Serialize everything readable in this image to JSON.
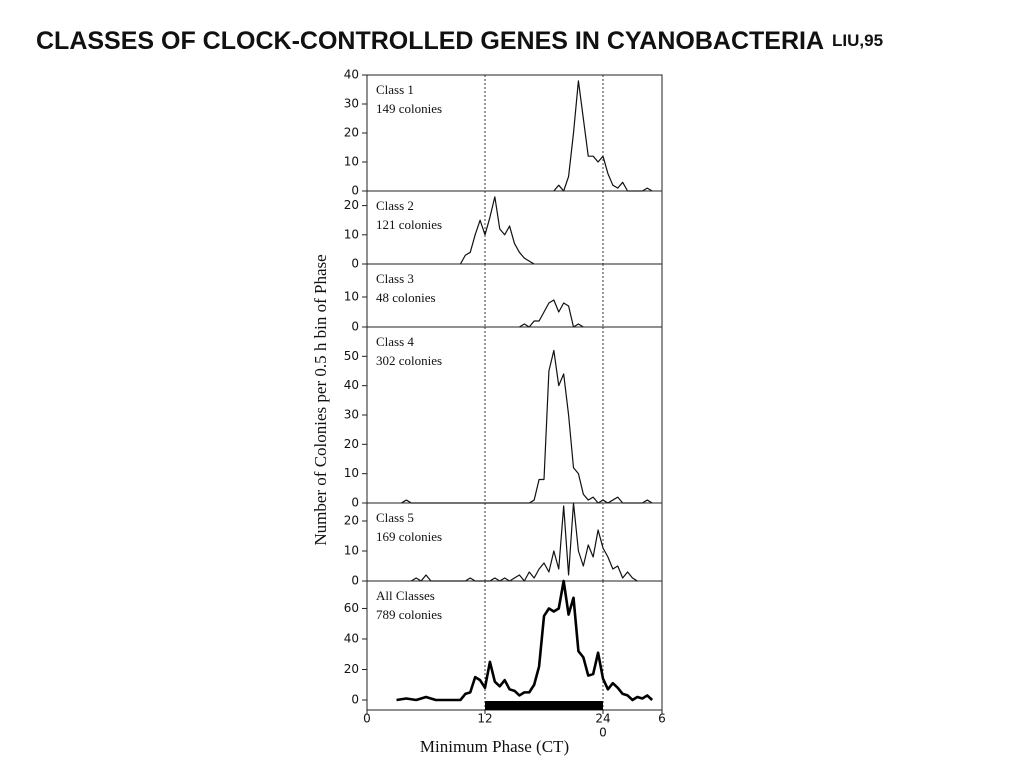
{
  "slide_title": "CLASSES OF CLOCK-CONTROLLED GENES IN CYANOBACTERIA",
  "slide_title_suffix": "LIU,95",
  "shared_y_label": "Number of Colonies per 0.5 h bin of Phase",
  "chart_data": [
    {
      "type": "line",
      "label": "Class 1",
      "sublabel": "149 colonies",
      "xlim": [
        0,
        30
      ],
      "ylim": [
        0,
        40
      ],
      "yticks": [
        0,
        10,
        20,
        30,
        40
      ],
      "reference_lines": [
        12,
        24
      ],
      "series": [
        {
          "name": "Class 1",
          "color": "#111111",
          "x": [
            19,
            19.5,
            20,
            20.5,
            21,
            21.5,
            22,
            22.5,
            23,
            23.5,
            24,
            24.5,
            25,
            25.5,
            26,
            26.5,
            28,
            28.5,
            29
          ],
          "values": [
            0,
            2,
            0,
            5,
            20,
            38,
            25,
            12,
            12,
            10,
            12,
            6,
            2,
            1,
            3,
            0,
            0,
            1,
            0
          ]
        }
      ]
    },
    {
      "type": "line",
      "label": "Class 2",
      "sublabel": "121 colonies",
      "xlim": [
        0,
        30
      ],
      "ylim": [
        0,
        25
      ],
      "yticks": [
        0,
        10,
        20
      ],
      "reference_lines": [
        12,
        24
      ],
      "series": [
        {
          "name": "Class 2",
          "color": "#111111",
          "x": [
            9.5,
            10,
            10.5,
            11,
            11.5,
            12,
            12.5,
            13,
            13.5,
            14,
            14.5,
            15,
            15.5,
            16,
            16.5,
            17
          ],
          "values": [
            0,
            3,
            4,
            10,
            15,
            10,
            16,
            23,
            12,
            10,
            13,
            7,
            4,
            2,
            1,
            0
          ]
        }
      ]
    },
    {
      "type": "line",
      "label": "Class 3",
      "sublabel": "48 colonies",
      "xlim": [
        0,
        30
      ],
      "ylim": [
        0,
        21
      ],
      "yticks": [
        0,
        10
      ],
      "reference_lines": [
        12,
        24
      ],
      "series": [
        {
          "name": "Class 3",
          "color": "#111111",
          "x": [
            15.5,
            16,
            16.5,
            17,
            17.5,
            18,
            18.5,
            19,
            19.5,
            20,
            20.5,
            21,
            21.5,
            22
          ],
          "values": [
            0,
            1,
            0,
            2,
            2,
            5,
            8,
            9,
            5,
            8,
            7,
            0,
            1,
            0
          ]
        }
      ]
    },
    {
      "type": "line",
      "label": "Class 4",
      "sublabel": "302 colonies",
      "xlim": [
        0,
        30
      ],
      "ylim": [
        0,
        60
      ],
      "yticks": [
        0,
        10,
        20,
        30,
        40,
        50
      ],
      "reference_lines": [
        12,
        24
      ],
      "series": [
        {
          "name": "Class 4",
          "color": "#111111",
          "x": [
            3.5,
            4,
            4.5,
            16.5,
            17,
            17.5,
            18,
            18.5,
            19,
            19.5,
            20,
            20.5,
            21,
            21.5,
            22,
            22.5,
            23,
            23.5,
            24,
            24.5,
            25,
            25.5,
            26,
            28,
            28.5,
            29
          ],
          "values": [
            0,
            1,
            0,
            0,
            1,
            8,
            8,
            45,
            52,
            40,
            44,
            30,
            12,
            10,
            3,
            1,
            2,
            0,
            1,
            0,
            1,
            2,
            0,
            0,
            1,
            0
          ]
        }
      ]
    },
    {
      "type": "line",
      "label": "Class 5",
      "sublabel": "169 colonies",
      "xlim": [
        0,
        30
      ],
      "ylim": [
        0,
        26
      ],
      "yticks": [
        0,
        10,
        20
      ],
      "reference_lines": [
        12,
        24
      ],
      "series": [
        {
          "name": "Class 5",
          "color": "#111111",
          "x": [
            4.5,
            5,
            5.5,
            6,
            6.5,
            10,
            10.5,
            11,
            12.5,
            13,
            13.5,
            14,
            14.5,
            15,
            15.5,
            16,
            16.5,
            17,
            17.5,
            18,
            18.5,
            19,
            19.5,
            20,
            20.5,
            21,
            21.5,
            22,
            22.5,
            23,
            23.5,
            24,
            24.5,
            25,
            25.5,
            26,
            26.5,
            27,
            27.5
          ],
          "values": [
            0,
            1,
            0,
            2,
            0,
            0,
            1,
            0,
            0,
            1,
            0,
            1,
            0,
            1,
            2,
            0,
            3,
            1,
            4,
            6,
            3,
            10,
            4,
            25,
            2,
            26,
            10,
            5,
            12,
            8,
            17,
            11,
            8,
            4,
            5,
            1,
            3,
            1,
            0
          ]
        }
      ]
    },
    {
      "type": "line",
      "label": "All Classes",
      "sublabel": "789 colonies",
      "xlim": [
        0,
        30
      ],
      "ylim": [
        0,
        78
      ],
      "yticks": [
        0,
        20,
        40,
        60
      ],
      "reference_lines": [
        12,
        24
      ],
      "dark_phase": [
        12,
        24
      ],
      "x_label": "Minimum Phase (CT)",
      "xticks": [
        0,
        12,
        24,
        {
          "value": 30,
          "label": "6"
        }
      ],
      "xticks2": [
        {
          "value": 24,
          "label": "0"
        }
      ],
      "series": [
        {
          "name": "All Classes",
          "color": "#000000",
          "x": [
            3,
            4,
            5,
            5.5,
            6,
            6.5,
            7,
            9.5,
            10,
            10.5,
            11,
            11.5,
            12,
            12.5,
            13,
            13.5,
            14,
            14.5,
            15,
            15.5,
            16,
            16.5,
            17,
            17.5,
            18,
            18.5,
            19,
            19.5,
            20,
            20.5,
            21,
            21.5,
            22,
            22.5,
            23,
            23.5,
            24,
            24.5,
            25,
            25.5,
            26,
            26.5,
            27,
            27.5,
            28,
            28.5,
            29
          ],
          "values": [
            0,
            1,
            0,
            1,
            2,
            1,
            0,
            0,
            4,
            5,
            15,
            13,
            8,
            25,
            12,
            9,
            13,
            7,
            6,
            3,
            5,
            5,
            10,
            22,
            55,
            60,
            58,
            60,
            78,
            56,
            67,
            32,
            28,
            16,
            17,
            31,
            14,
            7,
            11,
            8,
            4,
            3,
            0,
            2,
            1,
            3,
            0
          ]
        }
      ]
    }
  ]
}
